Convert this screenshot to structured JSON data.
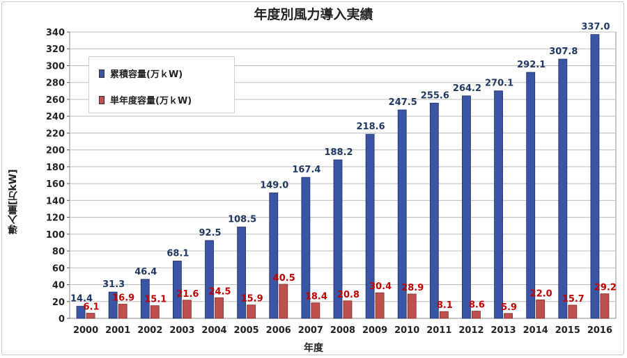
{
  "colors": {
    "cumulative_bar": "#3a55a4",
    "annual_bar": "#c0504d",
    "cumulative_label": "#1f3864",
    "annual_label": "#c00000",
    "grid": "#bdbdbd"
  },
  "chart_data": {
    "type": "bar",
    "title": "年度別風力導入実績",
    "xlabel": "年度",
    "ylabel": "導入量[万kW]",
    "ylim": [
      0,
      340
    ],
    "yticks": [
      "0",
      "20",
      "40",
      "60",
      "80",
      "100",
      "120",
      "140",
      "160",
      "180",
      "200",
      "220",
      "240",
      "260",
      "280",
      "300",
      "320",
      "340"
    ],
    "grid": "horizontal",
    "legend_position": "top-left",
    "categories": [
      "2000",
      "2001",
      "2002",
      "2003",
      "2004",
      "2005",
      "2006",
      "2007",
      "2008",
      "2009",
      "2010",
      "2011",
      "2012",
      "2013",
      "2014",
      "2015",
      "2016"
    ],
    "series": [
      {
        "name": "累積容量(万ｋW)",
        "values": [
          14.4,
          31.3,
          46.4,
          68.1,
          92.5,
          108.5,
          149.0,
          167.4,
          188.2,
          218.6,
          247.5,
          255.6,
          264.2,
          270.1,
          292.1,
          307.8,
          337.0
        ],
        "labels": [
          "14.4",
          "31.3",
          "46.4",
          "68.1",
          "92.5",
          "108.5",
          "149.0",
          "167.4",
          "188.2",
          "218.6",
          "247.5",
          "255.6",
          "264.2",
          "270.1",
          "292.1",
          "307.8",
          "337.0"
        ]
      },
      {
        "name": "単年度容量(万ｋW)",
        "values": [
          6.1,
          16.9,
          15.1,
          21.6,
          24.5,
          15.9,
          40.5,
          18.4,
          20.8,
          30.4,
          28.9,
          8.1,
          8.6,
          5.9,
          22.0,
          15.7,
          29.2
        ],
        "labels": [
          "6.1",
          "16.9",
          "15.1",
          "21.6",
          "24.5",
          "15.9",
          "40.5",
          "18.4",
          "20.8",
          "30.4",
          "28.9",
          "8.1",
          "8.6",
          "5.9",
          "22.0",
          "15.7",
          "29.2"
        ]
      }
    ]
  }
}
